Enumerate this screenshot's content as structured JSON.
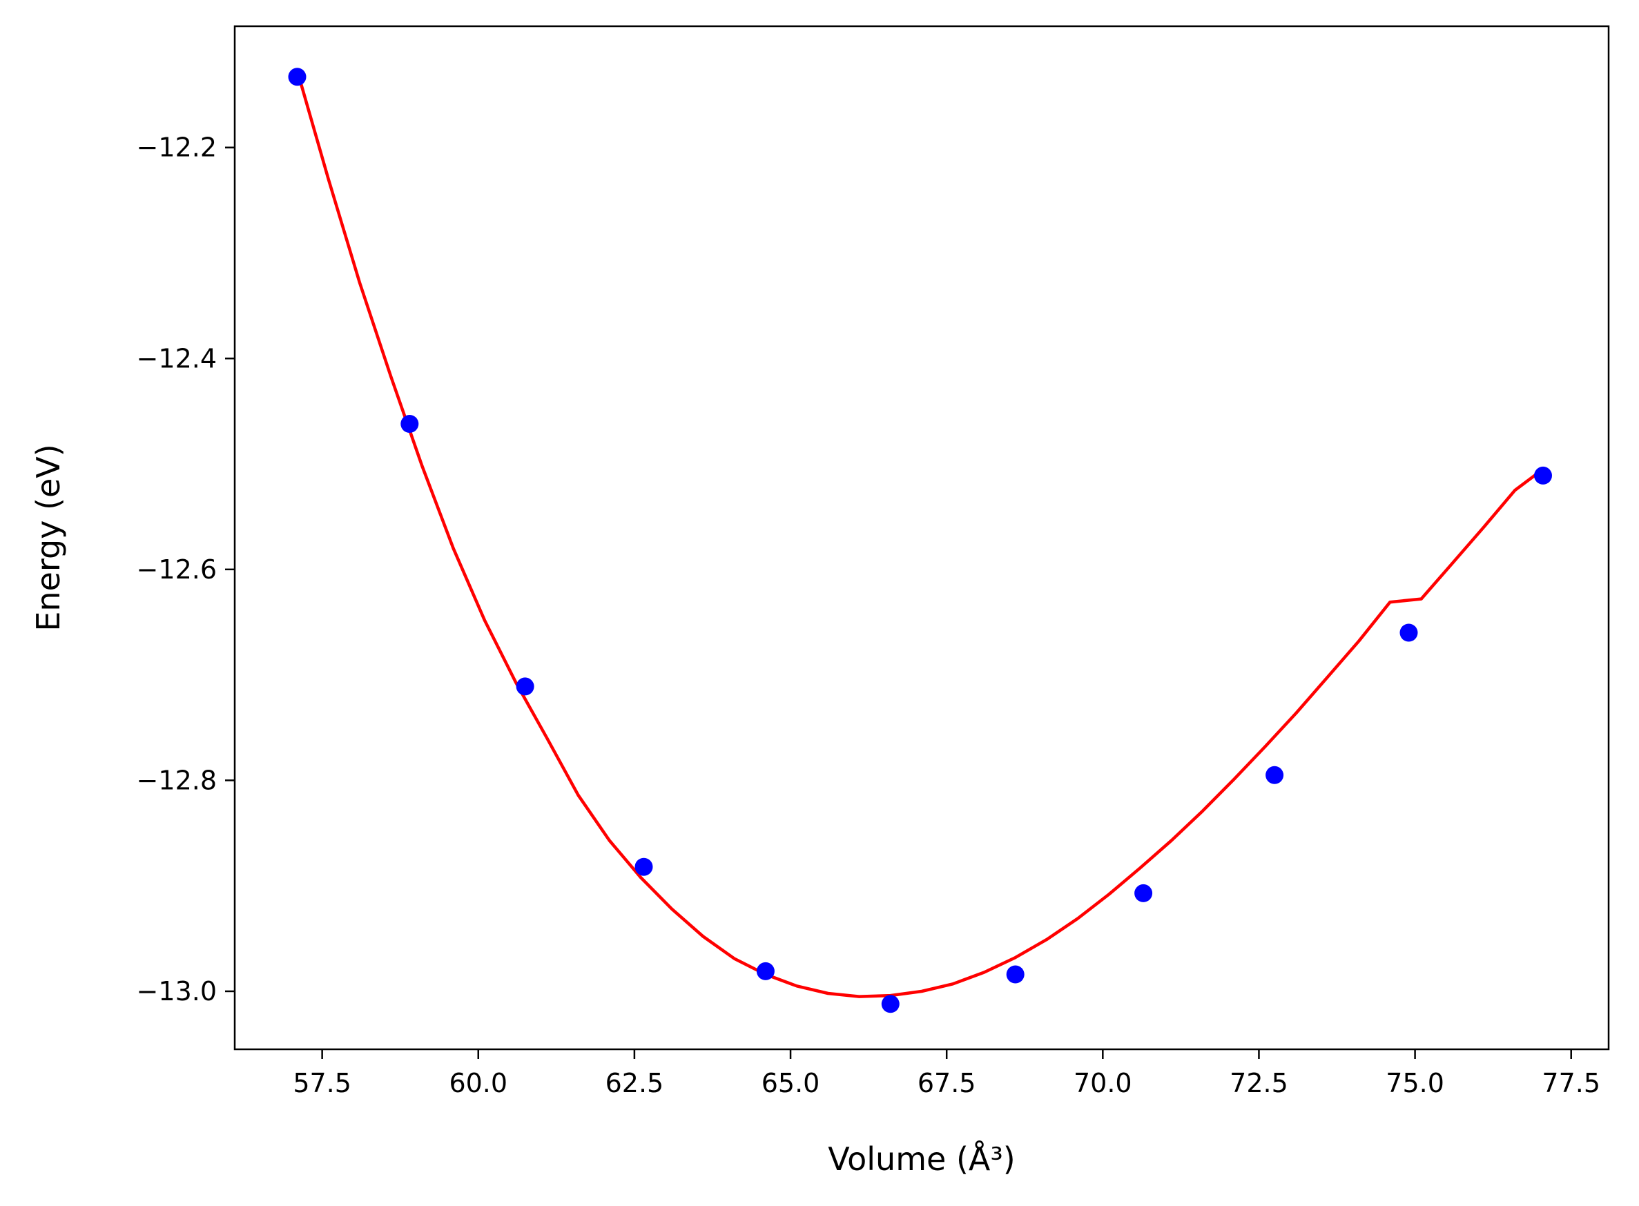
{
  "chart_data": {
    "type": "scatter",
    "xlabel": "Volume (Å³)",
    "ylabel": "Energy (eV)",
    "xlim": [
      56.1,
      78.1
    ],
    "ylim": [
      -13.055,
      -12.085
    ],
    "xticks": [
      "57.5",
      "60.0",
      "62.5",
      "65.0",
      "67.5",
      "70.0",
      "72.5",
      "75.0",
      "77.5"
    ],
    "xtick_values": [
      57.5,
      60.0,
      62.5,
      65.0,
      67.5,
      70.0,
      72.5,
      75.0,
      77.5
    ],
    "yticks": [
      "−12.2",
      "−12.4",
      "−12.6",
      "−12.8",
      "−13.0"
    ],
    "ytick_values": [
      -12.2,
      -12.4,
      -12.6,
      -12.8,
      -13.0
    ],
    "grid": false,
    "series": [
      {
        "kind": "points",
        "color": "#0000ff",
        "x": [
          57.1,
          58.9,
          60.75,
          62.65,
          64.6,
          66.6,
          68.6,
          70.65,
          72.75,
          74.9,
          77.05
        ],
        "y": [
          -12.133,
          -12.462,
          -12.711,
          -12.882,
          -12.981,
          -13.012,
          -12.984,
          -12.907,
          -12.795,
          -12.66,
          -12.511
        ]
      },
      {
        "kind": "line",
        "color": "#ff0000",
        "x": [
          57.1,
          57.6,
          58.1,
          58.6,
          59.1,
          59.6,
          60.1,
          60.6,
          61.1,
          61.6,
          62.1,
          62.6,
          63.1,
          63.6,
          64.1,
          64.6,
          65.1,
          65.6,
          66.1,
          66.6,
          67.1,
          67.6,
          68.1,
          68.6,
          69.1,
          69.6,
          70.1,
          70.6,
          71.1,
          71.6,
          72.1,
          72.6,
          73.1,
          73.6,
          74.1,
          74.6,
          75.1,
          75.6,
          76.1,
          76.6,
          77.05
        ],
        "y": [
          -12.127,
          -12.23,
          -12.328,
          -12.417,
          -12.502,
          -12.58,
          -12.648,
          -12.707,
          -12.76,
          -12.814,
          -12.857,
          -12.892,
          -12.922,
          -12.948,
          -12.969,
          -12.984,
          -12.995,
          -13.002,
          -13.005,
          -13.004,
          -13.0,
          -12.993,
          -12.982,
          -12.968,
          -12.951,
          -12.931,
          -12.908,
          -12.883,
          -12.857,
          -12.829,
          -12.799,
          -12.768,
          -12.736,
          -12.702,
          -12.668,
          -12.631,
          -12.628,
          -12.594,
          -12.56,
          -12.525,
          -12.505
        ]
      }
    ]
  }
}
